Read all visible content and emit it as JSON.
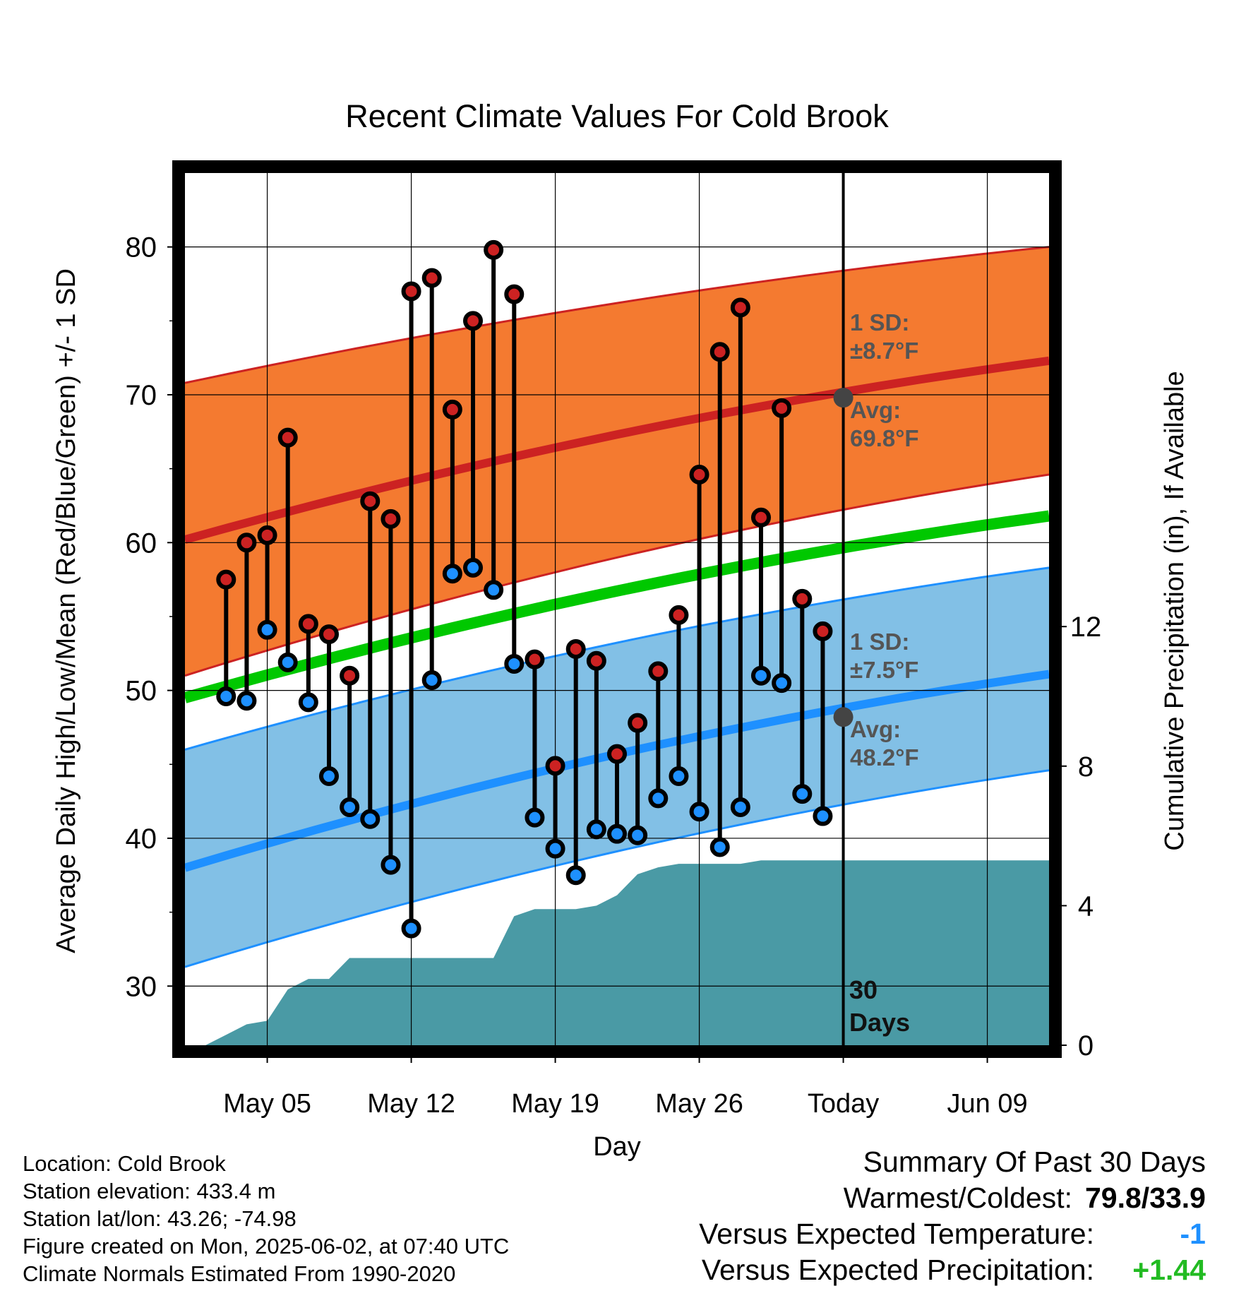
{
  "chart_data": {
    "type": "line",
    "title": "Recent Climate Values For Cold Brook",
    "xlabel": "Day",
    "ylabel": "Average Daily High/Low/Mean (Red/Blue/Green) +/- 1 SD",
    "y2label": "Cumulative Precipitation (in), If Available",
    "ylim": [
      26,
      85
    ],
    "y2lim": [
      0,
      25
    ],
    "yticks": [
      30,
      40,
      50,
      60,
      70,
      80
    ],
    "y2ticks": [
      0,
      4,
      8,
      12
    ],
    "xlim": [
      "2025-05-01",
      "2025-06-12"
    ],
    "xtick_dates": [
      "2025-05-05",
      "2025-05-12",
      "2025-05-19",
      "2025-05-26",
      "2025-06-02",
      "2025-06-09"
    ],
    "xtick_labels": [
      "May 05",
      "May 12",
      "May 19",
      "May 26",
      "Today",
      "Jun 09"
    ],
    "today": "2025-06-02",
    "days": [
      "2025-05-03",
      "2025-05-04",
      "2025-05-05",
      "2025-05-06",
      "2025-05-07",
      "2025-05-08",
      "2025-05-09",
      "2025-05-10",
      "2025-05-11",
      "2025-05-12",
      "2025-05-13",
      "2025-05-14",
      "2025-05-15",
      "2025-05-16",
      "2025-05-17",
      "2025-05-18",
      "2025-05-19",
      "2025-05-20",
      "2025-05-21",
      "2025-05-22",
      "2025-05-23",
      "2025-05-24",
      "2025-05-25",
      "2025-05-26",
      "2025-05-27",
      "2025-05-28",
      "2025-05-29",
      "2025-05-30",
      "2025-05-31",
      "2025-06-01"
    ],
    "series": [
      {
        "name": "High",
        "color": "#cc2222",
        "values": [
          57.5,
          60.0,
          60.5,
          67.1,
          54.5,
          53.8,
          51.0,
          62.8,
          61.6,
          77.0,
          77.9,
          69.0,
          75.0,
          79.8,
          76.8,
          52.1,
          44.9,
          52.8,
          52.0,
          45.7,
          47.8,
          51.3,
          55.1,
          64.6,
          72.9,
          75.9,
          61.7,
          69.1,
          56.2,
          54.0
        ]
      },
      {
        "name": "Low",
        "color": "#1e90ff",
        "values": [
          49.6,
          49.3,
          54.1,
          51.9,
          49.2,
          44.2,
          42.1,
          41.3,
          38.2,
          33.9,
          50.7,
          57.9,
          58.3,
          56.8,
          51.8,
          41.4,
          39.3,
          37.5,
          40.6,
          40.3,
          40.2,
          42.7,
          44.2,
          41.8,
          39.4,
          42.1,
          51.0,
          50.5,
          43.0,
          41.5
        ]
      }
    ],
    "normals": {
      "dates": [
        "2025-05-01",
        "2025-06-12"
      ],
      "high_avg": [
        60.2,
        72.3
      ],
      "high_upper": [
        70.8,
        80.0
      ],
      "high_lower": [
        51.0,
        64.6
      ],
      "mean_avg": [
        49.5,
        61.8
      ],
      "low_avg": [
        38.0,
        51.1
      ],
      "low_upper": [
        46.0,
        58.3
      ],
      "low_lower": [
        31.3,
        44.6
      ]
    },
    "precip_cumulative": {
      "dates": [
        "2025-05-02",
        "2025-05-03",
        "2025-05-04",
        "2025-05-05",
        "2025-05-06",
        "2025-05-07",
        "2025-05-08",
        "2025-05-09",
        "2025-05-10",
        "2025-05-12",
        "2025-05-15",
        "2025-05-16",
        "2025-05-17",
        "2025-05-18",
        "2025-05-19",
        "2025-05-20",
        "2025-05-21",
        "2025-05-22",
        "2025-05-23",
        "2025-05-24",
        "2025-05-25",
        "2025-05-26",
        "2025-05-27",
        "2025-05-28",
        "2025-05-29",
        "2025-05-30",
        "2025-05-31",
        "2025-06-01",
        "2025-06-12"
      ],
      "values": [
        0.0,
        0.3,
        0.6,
        0.7,
        1.6,
        1.9,
        1.9,
        2.5,
        2.5,
        2.5,
        2.5,
        2.5,
        3.7,
        3.9,
        3.9,
        3.9,
        4.0,
        4.3,
        4.9,
        5.1,
        5.2,
        5.2,
        5.2,
        5.2,
        5.3,
        5.3,
        5.3,
        5.3,
        5.3
      ],
      "color": "#4a9aa5"
    },
    "colors": {
      "high_band": "#f47a30",
      "high_line": "#cc2222",
      "mean_line": "#00c800",
      "low_band": "#82c0e6",
      "low_line": "#1e90ff",
      "frame": "#000000",
      "avg_marker": "#444444"
    },
    "annotations": {
      "high_sd_label": "1 SD:",
      "high_sd_value": "±8.7°F",
      "high_avg_label": "Avg:",
      "high_avg_value": "69.8°F",
      "low_sd_label": "1 SD:",
      "low_sd_value": "±7.5°F",
      "low_avg_label": "Avg:",
      "low_avg_value": "48.2°F",
      "days_line1": "30",
      "days_line2": "Days"
    }
  },
  "info": {
    "location": "Location: Cold Brook",
    "elevation": "Station elevation: 433.4 m",
    "latlon": "Station lat/lon: 43.26; -74.98",
    "created": "Figure created on Mon, 2025-06-02, at 07:40 UTC",
    "normals": "Climate Normals Estimated From 1990-2020"
  },
  "summary": {
    "title": "Summary Of Past 30 Days",
    "warm_cold_label": "Warmest/Coldest:",
    "warm_cold_value": "79.8/33.9",
    "temp_label": "Versus Expected Temperature:",
    "temp_value": "-1",
    "temp_color": "#1e90ff",
    "precip_label": "Versus Expected Precipitation:",
    "precip_value": "+1.44",
    "precip_color": "#22bb22"
  }
}
